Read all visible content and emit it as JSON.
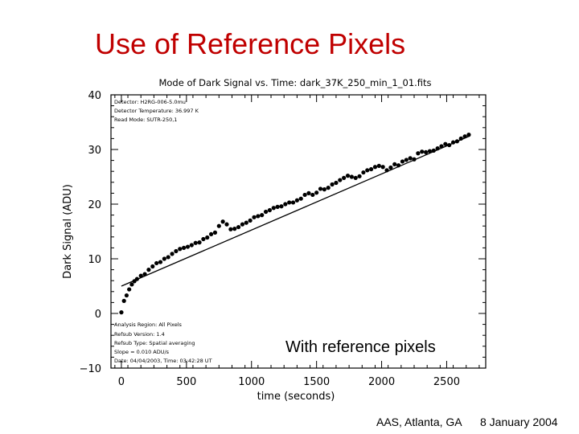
{
  "slide": {
    "title": "Use of Reference Pixels",
    "overlay_label": "With reference pixels",
    "footer_venue": "AAS, Atlanta, GA",
    "footer_date": "8 January 2004"
  },
  "colors": {
    "title": "#c00000",
    "ink": "#000000"
  },
  "chart_data": {
    "type": "scatter",
    "title": "Mode of Dark Signal vs. Time: dark_37K_250_min_1_01.fits",
    "xlabel": "time (seconds)",
    "ylabel": "Dark Signal (ADU)",
    "xlim": [
      -80,
      2800
    ],
    "ylim": [
      -10,
      40
    ],
    "xticks": [
      0,
      500,
      1000,
      1500,
      2000,
      2500
    ],
    "yticks": [
      -10,
      0,
      10,
      20,
      30,
      40
    ],
    "xtick_labels": [
      "0",
      "500",
      "1000",
      "1500",
      "2000",
      "2500"
    ],
    "ytick_labels": [
      "−10",
      "0",
      "10",
      "20",
      "30",
      "40"
    ],
    "info_top": [
      "Detector:  H2RG-006-5.0mu",
      "Detector Temperature:  36.997 K",
      "Read Mode:  SUTR-250,1"
    ],
    "info_bottom": [
      "Analysis Region: All Pixels",
      "Refsub Version: 1.4",
      "Refsub Type: Spatial averaging",
      "Slope = 0.010 ADU/s",
      "Date: 04/04/2003, Time: 03:42:28 UT"
    ],
    "fit_line": {
      "x": [
        0,
        2680
      ],
      "y": [
        5.0,
        32.5
      ]
    },
    "series": [
      {
        "x": [
          0,
          20,
          40,
          60,
          80,
          100,
          120,
          150,
          180,
          210,
          240,
          270,
          300,
          330,
          360,
          390,
          420,
          450,
          480,
          510,
          540,
          570,
          600,
          630,
          660,
          690,
          720,
          750,
          780,
          810,
          840,
          870,
          900,
          930,
          960,
          990,
          1020,
          1050,
          1080,
          1110,
          1140,
          1170,
          1200,
          1230,
          1260,
          1290,
          1320,
          1350,
          1380,
          1410,
          1440,
          1470,
          1500,
          1530,
          1560,
          1590,
          1620,
          1650,
          1680,
          1710,
          1740,
          1770,
          1800,
          1830,
          1860,
          1890,
          1920,
          1950,
          1980,
          2010,
          2040,
          2070,
          2100,
          2130,
          2160,
          2190,
          2220,
          2250,
          2280,
          2310,
          2340,
          2370,
          2400,
          2430,
          2460,
          2490,
          2520,
          2550,
          2580,
          2610,
          2640,
          2670
        ],
        "y": [
          0.2,
          2.3,
          3.3,
          4.4,
          5.3,
          5.9,
          6.3,
          6.9,
          7.2,
          8.0,
          8.6,
          9.2,
          9.4,
          10.0,
          10.3,
          10.9,
          11.4,
          11.8,
          12.0,
          12.2,
          12.5,
          12.9,
          13.0,
          13.6,
          13.9,
          14.5,
          14.8,
          16.0,
          16.8,
          16.3,
          15.4,
          15.5,
          15.8,
          16.3,
          16.6,
          17.0,
          17.6,
          17.8,
          18.0,
          18.6,
          18.9,
          19.3,
          19.5,
          19.6,
          20.0,
          20.3,
          20.3,
          20.7,
          21.0,
          21.7,
          22.0,
          21.7,
          22.1,
          22.8,
          22.7,
          23.0,
          23.6,
          23.9,
          24.4,
          24.8,
          25.2,
          25.0,
          24.8,
          25.1,
          25.8,
          26.2,
          26.4,
          26.8,
          27.0,
          26.8,
          26.2,
          26.7,
          27.3,
          27.1,
          27.8,
          28.1,
          28.4,
          28.2,
          29.3,
          29.6,
          29.5,
          29.7,
          29.8,
          30.2,
          30.6,
          31.0,
          30.8,
          31.3,
          31.5,
          32.0,
          32.4,
          32.7
        ]
      }
    ]
  }
}
